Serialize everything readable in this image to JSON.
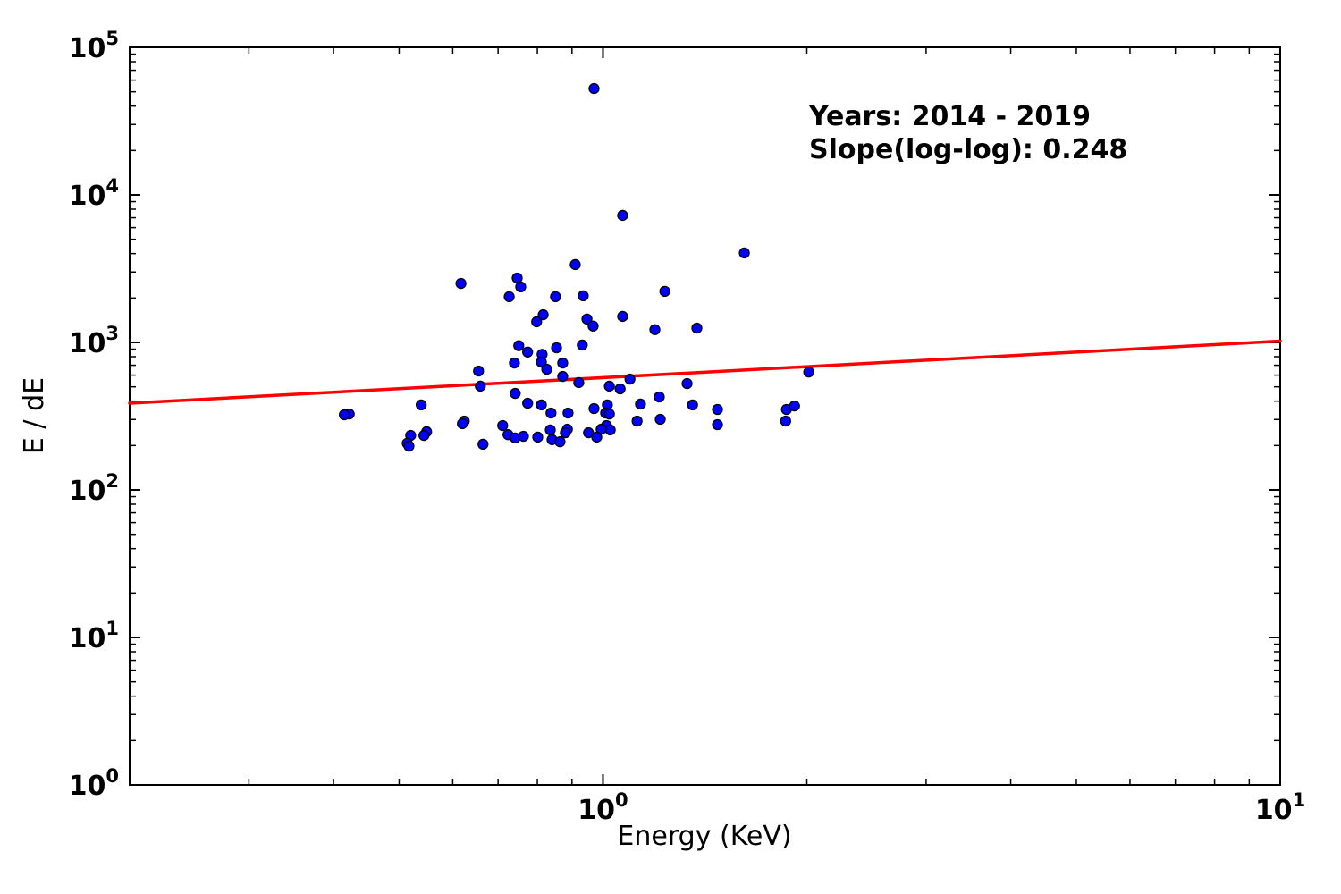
{
  "chart_data": {
    "type": "scatter",
    "title": "",
    "xlabel": "Energy (KeV)",
    "ylabel": "E / dE",
    "xscale": "log",
    "yscale": "log",
    "xlim": [
      0.2,
      10
    ],
    "ylim": [
      1,
      100000
    ],
    "x_major_ticks": [
      1,
      10
    ],
    "y_major_ticks": [
      1,
      10,
      100,
      1000,
      10000,
      100000
    ],
    "grid": "off",
    "legend": "none",
    "background_color": "#ffffff",
    "marker_color": "#0000ff",
    "marker_edge_color": "#000000",
    "annotation": {
      "line1": "Years: 2014 - 2019",
      "line2": "Slope(log-log): 0.248"
    },
    "fit_line": {
      "color": "#ff0000",
      "slope_loglog": 0.248,
      "x1": 0.2,
      "y1": 387,
      "x2": 10,
      "y2": 1021
    },
    "points": [
      [
        0.97,
        52600
      ],
      [
        1.069,
        7260
      ],
      [
        1.617,
        4040
      ],
      [
        0.91,
        3370
      ],
      [
        0.935,
        2070
      ],
      [
        1.234,
        2220
      ],
      [
        0.947,
        1440
      ],
      [
        0.967,
        1290
      ],
      [
        1.069,
        1500
      ],
      [
        1.193,
        1220
      ],
      [
        1.376,
        1250
      ],
      [
        0.932,
        960
      ],
      [
        0.617,
        2510
      ],
      [
        0.747,
        2730
      ],
      [
        0.756,
        2380
      ],
      [
        0.727,
        2040
      ],
      [
        0.851,
        2040
      ],
      [
        0.816,
        1540
      ],
      [
        0.798,
        1380
      ],
      [
        0.751,
        950
      ],
      [
        0.774,
        860
      ],
      [
        0.813,
        830
      ],
      [
        0.854,
        920
      ],
      [
        0.74,
        725
      ],
      [
        0.811,
        736
      ],
      [
        0.826,
        658
      ],
      [
        0.872,
        725
      ],
      [
        0.655,
        640
      ],
      [
        0.872,
        588
      ],
      [
        0.659,
        505
      ],
      [
        0.742,
        451
      ],
      [
        0.774,
        387
      ],
      [
        0.811,
        377
      ],
      [
        0.838,
        332
      ],
      [
        0.888,
        332
      ],
      [
        0.422,
        327
      ],
      [
        0.415,
        323
      ],
      [
        0.539,
        377
      ],
      [
        0.624,
        293
      ],
      [
        0.62,
        281
      ],
      [
        0.711,
        273
      ],
      [
        0.549,
        248
      ],
      [
        0.544,
        234
      ],
      [
        0.724,
        237
      ],
      [
        0.742,
        225
      ],
      [
        0.763,
        231
      ],
      [
        0.801,
        228
      ],
      [
        0.836,
        255
      ],
      [
        0.841,
        219
      ],
      [
        0.52,
        234
      ],
      [
        0.514,
        207
      ],
      [
        0.517,
        198
      ],
      [
        0.665,
        204
      ],
      [
        0.886,
        258
      ],
      [
        0.88,
        244
      ],
      [
        0.864,
        212
      ],
      [
        0.921,
        534
      ],
      [
        1.096,
        564
      ],
      [
        1.022,
        505
      ],
      [
        1.06,
        484
      ],
      [
        1.331,
        526
      ],
      [
        2.013,
        630
      ],
      [
        1.211,
        427
      ],
      [
        1.136,
        382
      ],
      [
        1.356,
        377
      ],
      [
        0.97,
        356
      ],
      [
        1.015,
        377
      ],
      [
        1.009,
        332
      ],
      [
        1.022,
        327
      ],
      [
        1.476,
        351
      ],
      [
        1.866,
        351
      ],
      [
        1.918,
        371
      ],
      [
        1.215,
        301
      ],
      [
        1.123,
        293
      ],
      [
        1.476,
        277
      ],
      [
        1.861,
        293
      ],
      [
        1.012,
        273
      ],
      [
        1.025,
        255
      ],
      [
        0.994,
        258
      ],
      [
        0.952,
        244
      ],
      [
        0.979,
        228
      ]
    ]
  }
}
